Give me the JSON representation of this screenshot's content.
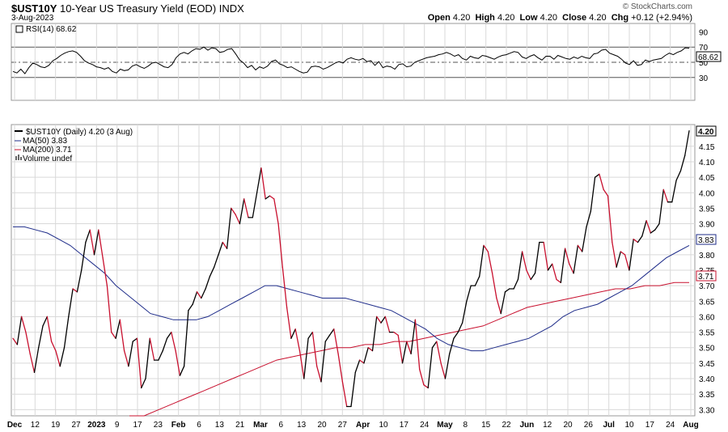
{
  "header": {
    "symbol": "$UST10Y",
    "name": "10-Year US Treasury Yield (EOD)",
    "exchange": "INDX",
    "date": "3-Aug-2023",
    "credit": "© StockCharts.com",
    "open_label": "Open",
    "open": "4.20",
    "high_label": "High",
    "high": "4.20",
    "low_label": "Low",
    "low": "4.20",
    "close_label": "Close",
    "close": "4.20",
    "chg_label": "Chg",
    "chg": "+0.12 (+2.94%)"
  },
  "rsi_legend": "RSI(14) 68.62",
  "price_legend": {
    "main": "$UST10Y (Daily) 4.20 (3 Aug)",
    "ma50": "MA(50) 3.83",
    "ma200": "MA(200) 3.71",
    "volume": "Volume undef"
  },
  "colors": {
    "price_up": "#000000",
    "price_down": "#c8102e",
    "ma50": "#1f2d8a",
    "ma200": "#c8102e",
    "grid": "#d9d9d9",
    "rsi_line": "#000000"
  },
  "chart_data": [
    {
      "type": "line",
      "title": "RSI(14) 68.62",
      "ylim": [
        0,
        100
      ],
      "ticks": [
        30,
        50,
        70,
        90
      ],
      "reference_lines": [
        30,
        50,
        70
      ],
      "last_value_label": "68.62",
      "series": [
        {
          "name": "RSI(14)",
          "values": [
            38,
            36,
            41,
            35,
            43,
            49,
            47,
            44,
            43,
            46,
            52,
            55,
            59,
            62,
            64,
            65,
            63,
            58,
            52,
            49,
            47,
            44,
            43,
            41,
            43,
            38,
            36,
            41,
            39,
            40,
            45,
            47,
            44,
            42,
            45,
            49,
            50,
            47,
            44,
            43,
            47,
            56,
            61,
            63,
            61,
            65,
            68,
            67,
            70,
            66,
            69,
            68,
            63,
            64,
            67,
            68,
            61,
            53,
            49,
            43,
            46,
            40,
            44,
            42,
            45,
            51,
            53,
            48,
            46,
            43,
            44,
            41,
            38,
            36,
            37,
            44,
            45,
            44,
            41,
            43,
            46,
            49,
            51,
            49,
            54,
            56,
            54,
            53,
            55,
            51,
            52,
            46,
            51,
            43,
            45,
            44,
            41,
            47,
            48,
            44,
            45,
            50,
            52,
            54,
            56,
            57,
            58,
            60,
            61,
            63,
            61,
            58,
            60,
            55,
            53,
            58,
            56,
            55,
            59,
            58,
            56,
            54,
            57,
            59,
            60,
            62,
            64,
            63,
            57,
            55,
            58,
            60,
            56,
            53,
            58,
            58,
            54,
            59,
            57,
            55,
            54,
            57,
            55,
            58,
            56,
            55,
            61,
            62,
            66,
            67,
            62,
            60,
            58,
            54,
            49,
            47,
            52,
            46,
            47,
            53,
            51,
            53,
            54,
            55,
            59,
            62,
            60,
            63,
            65,
            69,
            68.62
          ]
        }
      ]
    },
    {
      "type": "line",
      "title": "$UST10Y (Daily) 4.20 (3 Aug)",
      "ylim": [
        3.28,
        4.22
      ],
      "ticks": [
        3.3,
        3.35,
        3.4,
        3.45,
        3.5,
        3.55,
        3.6,
        3.65,
        3.7,
        3.75,
        3.8,
        3.85,
        3.9,
        3.95,
        4.0,
        4.05,
        4.1,
        4.15
      ],
      "x_tick_labels": [
        "Dec",
        "12",
        "19",
        "27",
        "2023",
        "9",
        "17",
        "23",
        "Feb",
        "6",
        "13",
        "21",
        "Mar",
        "6",
        "13",
        "20",
        "27",
        "Apr",
        "10",
        "17",
        "24",
        "May",
        "8",
        "15",
        "22",
        "Jun",
        "12",
        "20",
        "26",
        "Jul",
        "10",
        "17",
        "24",
        "Aug"
      ],
      "bold_x_tick_labels": [
        "Dec",
        "2023",
        "Feb",
        "Mar",
        "Apr",
        "May",
        "Jun",
        "Jul",
        "Aug"
      ],
      "last_value_labels": {
        "price": "4.20",
        "ma50": "3.83",
        "ma200": "3.71"
      },
      "series": [
        {
          "name": "$UST10Y",
          "values": [
            3.53,
            3.51,
            3.6,
            3.55,
            3.48,
            3.42,
            3.5,
            3.57,
            3.6,
            3.52,
            3.49,
            3.44,
            3.5,
            3.6,
            3.69,
            3.68,
            3.75,
            3.84,
            3.88,
            3.8,
            3.88,
            3.79,
            3.7,
            3.55,
            3.53,
            3.59,
            3.49,
            3.44,
            3.52,
            3.53,
            3.37,
            3.4,
            3.53,
            3.46,
            3.46,
            3.49,
            3.53,
            3.55,
            3.49,
            3.41,
            3.44,
            3.62,
            3.64,
            3.68,
            3.66,
            3.69,
            3.73,
            3.76,
            3.8,
            3.84,
            3.82,
            3.95,
            3.93,
            3.9,
            3.98,
            3.92,
            3.92,
            4.0,
            4.08,
            3.98,
            3.99,
            3.98,
            3.9,
            3.76,
            3.63,
            3.53,
            3.56,
            3.49,
            3.4,
            3.53,
            3.55,
            3.44,
            3.39,
            3.52,
            3.54,
            3.56,
            3.48,
            3.39,
            3.31,
            3.31,
            3.42,
            3.46,
            3.45,
            3.5,
            3.49,
            3.6,
            3.58,
            3.6,
            3.55,
            3.55,
            3.54,
            3.45,
            3.52,
            3.48,
            3.59,
            3.43,
            3.38,
            3.37,
            3.5,
            3.52,
            3.45,
            3.4,
            3.48,
            3.53,
            3.55,
            3.58,
            3.65,
            3.7,
            3.7,
            3.73,
            3.83,
            3.81,
            3.74,
            3.66,
            3.61,
            3.68,
            3.69,
            3.69,
            3.72,
            3.81,
            3.75,
            3.72,
            3.74,
            3.84,
            3.84,
            3.75,
            3.77,
            3.72,
            3.71,
            3.82,
            3.77,
            3.74,
            3.83,
            3.81,
            3.89,
            3.94,
            4.05,
            4.06,
            4.01,
            3.99,
            3.84,
            3.76,
            3.81,
            3.8,
            3.75,
            3.85,
            3.84,
            3.86,
            3.91,
            3.87,
            3.88,
            3.9,
            4.01,
            3.97,
            3.97,
            4.04,
            4.07,
            4.12,
            4.2
          ]
        },
        {
          "name": "MA(50)",
          "values": [
            3.89,
            3.89,
            3.88,
            3.87,
            3.85,
            3.83,
            3.8,
            3.77,
            3.74,
            3.7,
            3.67,
            3.64,
            3.61,
            3.6,
            3.59,
            3.59,
            3.59,
            3.6,
            3.62,
            3.64,
            3.66,
            3.68,
            3.7,
            3.7,
            3.69,
            3.68,
            3.67,
            3.66,
            3.66,
            3.66,
            3.65,
            3.64,
            3.63,
            3.62,
            3.6,
            3.58,
            3.56,
            3.53,
            3.51,
            3.5,
            3.49,
            3.49,
            3.5,
            3.51,
            3.52,
            3.53,
            3.55,
            3.57,
            3.6,
            3.62,
            3.63,
            3.64,
            3.66,
            3.68,
            3.7,
            3.73,
            3.76,
            3.79,
            3.81,
            3.83
          ]
        },
        {
          "name": "MA(200)",
          "values": [
            3.26,
            3.28,
            3.3,
            3.32,
            3.34,
            3.36,
            3.38,
            3.4,
            3.42,
            3.44,
            3.46,
            3.47,
            3.48,
            3.49,
            3.5,
            3.5,
            3.51,
            3.51,
            3.52,
            3.52,
            3.53,
            3.54,
            3.55,
            3.56,
            3.57,
            3.59,
            3.61,
            3.63,
            3.64,
            3.65,
            3.66,
            3.67,
            3.68,
            3.69,
            3.69,
            3.7,
            3.7,
            3.71,
            3.71
          ]
        }
      ]
    }
  ]
}
